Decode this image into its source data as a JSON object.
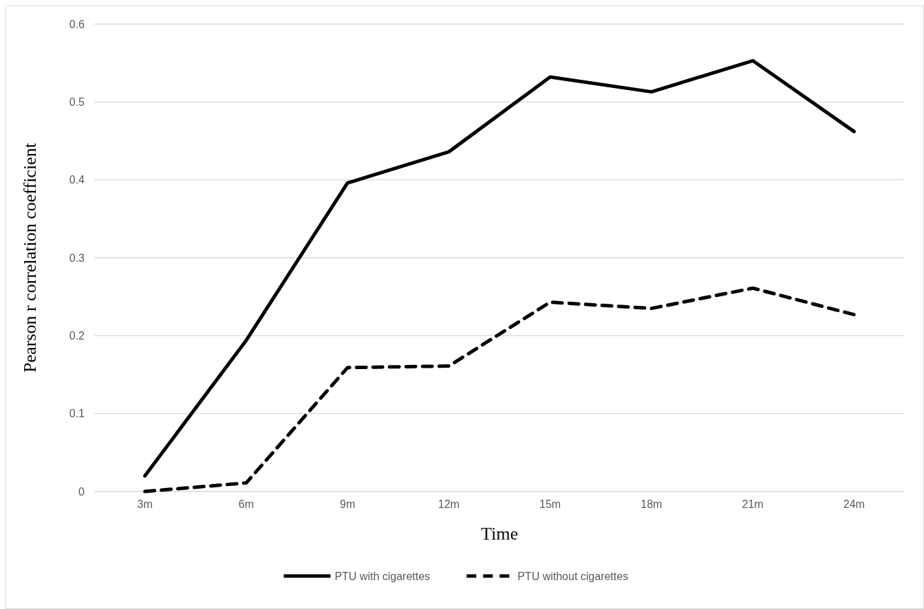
{
  "chart_data": {
    "type": "line",
    "xlabel": "Time",
    "ylabel": "Pearson r correlation coefficient",
    "categories": [
      "3m",
      "6m",
      "9m",
      "12m",
      "15m",
      "18m",
      "21m",
      "24m"
    ],
    "series": [
      {
        "name": "PTU with cigarettes",
        "color": "#000000",
        "line_style": "solid",
        "values": [
          0.02,
          0.194,
          0.396,
          0.436,
          0.532,
          0.513,
          0.553,
          0.462
        ]
      },
      {
        "name": "PTU without cigarettes",
        "color": "#000000",
        "line_style": "dashed",
        "values": [
          0.0,
          0.011,
          0.159,
          0.161,
          0.243,
          0.235,
          0.261,
          0.227
        ]
      }
    ],
    "ylim": [
      0,
      0.6
    ],
    "yticks": [
      0,
      0.1,
      0.2,
      0.3,
      0.4,
      0.5,
      0.6
    ],
    "grid": "y",
    "legend": "bottom",
    "marker": "none"
  }
}
